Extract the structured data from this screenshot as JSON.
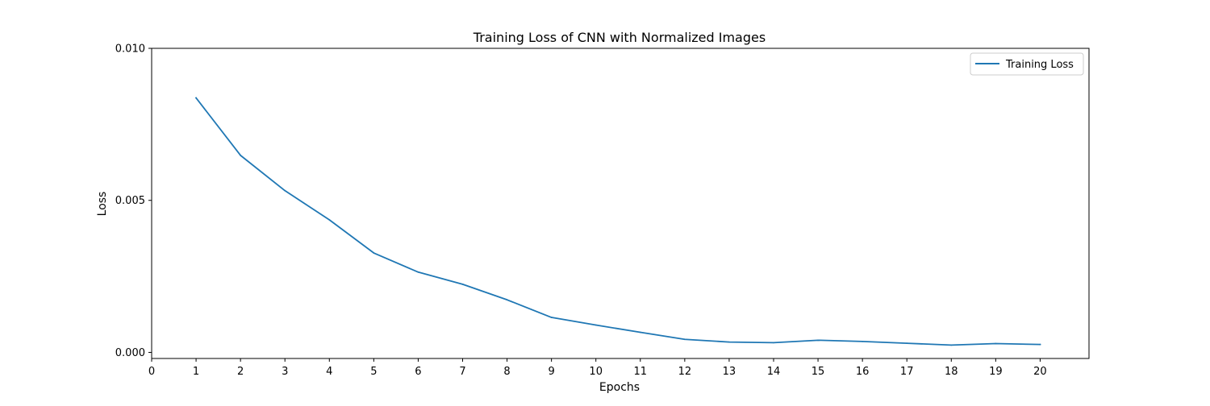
{
  "chart_data": {
    "type": "line",
    "title": "Training Loss of CNN with Normalized Images",
    "xlabel": "Epochs",
    "ylabel": "Loss",
    "xlim": [
      0,
      21.1
    ],
    "ylim": [
      -0.0002,
      0.01
    ],
    "x_ticks": [
      0,
      1,
      2,
      3,
      4,
      5,
      6,
      7,
      8,
      9,
      10,
      11,
      12,
      13,
      14,
      15,
      16,
      17,
      18,
      19,
      20
    ],
    "y_ticks": [
      0.0,
      0.005,
      0.01
    ],
    "y_tick_labels": [
      "0.000",
      "0.005",
      "0.010"
    ],
    "grid": false,
    "legend_position": "upper right",
    "series": [
      {
        "name": "Training Loss",
        "color": "#1f77b4",
        "x": [
          1,
          2,
          3,
          4,
          5,
          6,
          7,
          8,
          9,
          10,
          11,
          12,
          13,
          14,
          15,
          16,
          17,
          18,
          19,
          20
        ],
        "values": [
          0.00837,
          0.00648,
          0.00532,
          0.00436,
          0.00327,
          0.00264,
          0.00224,
          0.00173,
          0.00115,
          0.0009,
          0.00066,
          0.00043,
          0.00034,
          0.00032,
          0.0004,
          0.00036,
          0.0003,
          0.00024,
          0.00029,
          0.00026
        ]
      }
    ]
  }
}
